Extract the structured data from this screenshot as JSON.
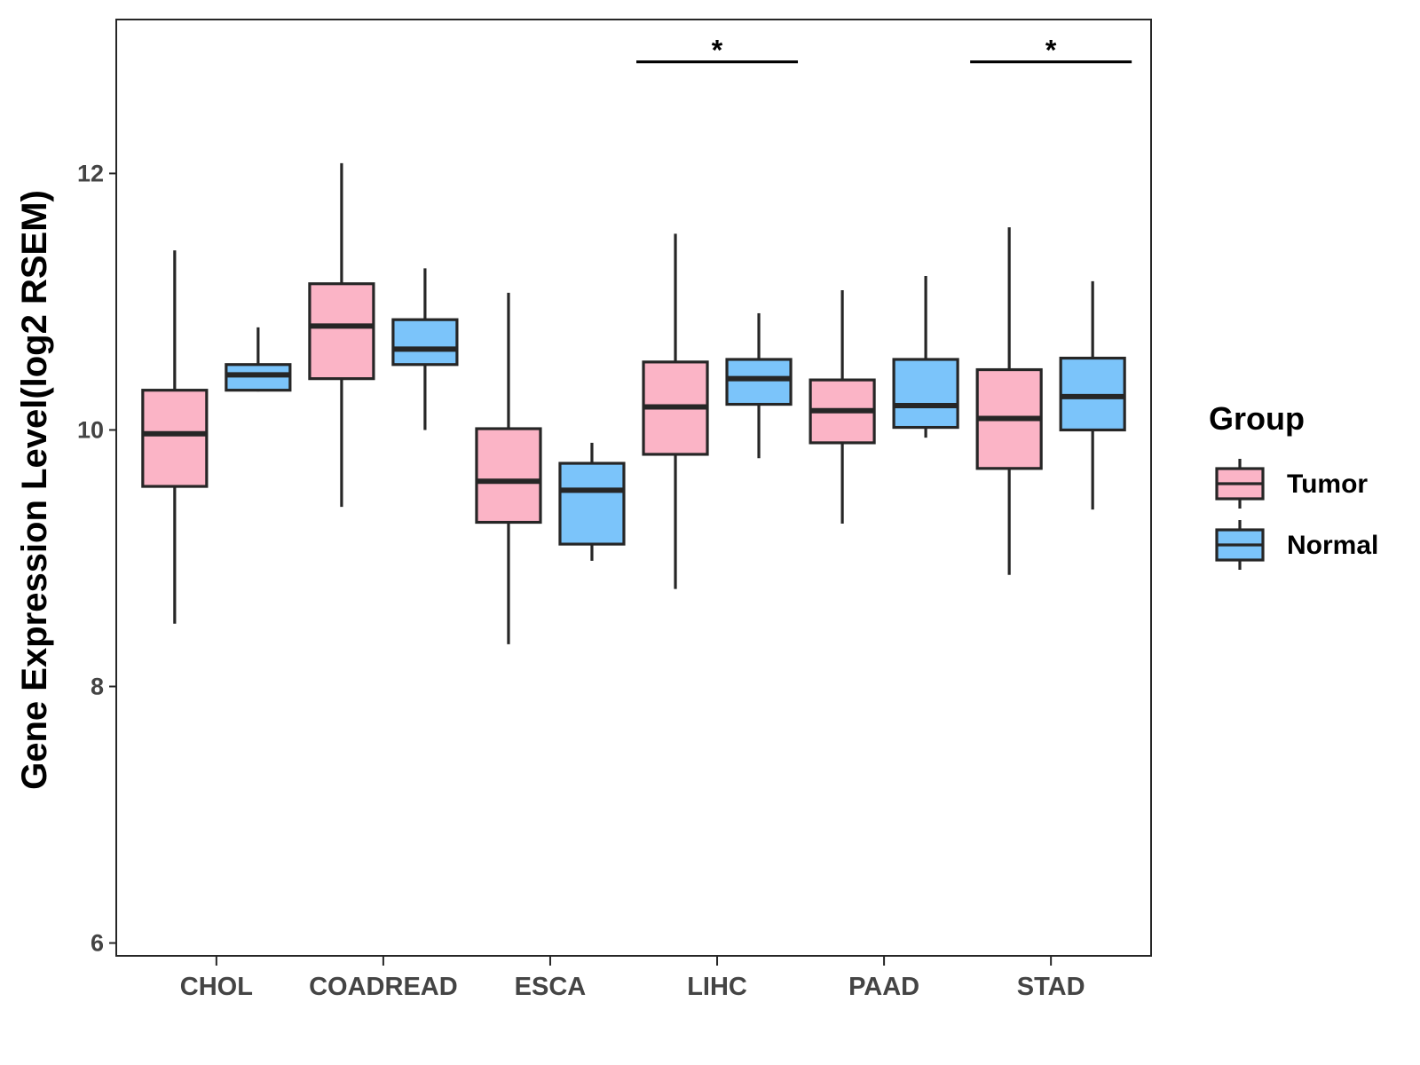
{
  "chart_data": {
    "type": "boxplot",
    "title": "",
    "xlabel": "",
    "ylabel": "Gene Expression Level(log2 RSEM)",
    "ylim": [
      5.9,
      13.2
    ],
    "yticks": [
      6,
      8,
      10,
      12
    ],
    "categories": [
      "CHOL",
      "COADREAD",
      "ESCA",
      "LIHC",
      "PAAD",
      "STAD"
    ],
    "legend": {
      "title": "Group",
      "position": "right",
      "entries": [
        "Tumor",
        "Normal"
      ]
    },
    "series": [
      {
        "name": "Tumor",
        "color": "#FBB4C6",
        "boxes": [
          {
            "min": 8.49,
            "q1": 9.56,
            "median": 9.97,
            "q3": 10.31,
            "max": 11.4
          },
          {
            "min": 9.4,
            "q1": 10.4,
            "median": 10.81,
            "q3": 11.14,
            "max": 12.08
          },
          {
            "min": 8.33,
            "q1": 9.28,
            "median": 9.6,
            "q3": 10.01,
            "max": 11.07
          },
          {
            "min": 8.76,
            "q1": 9.81,
            "median": 10.18,
            "q3": 10.53,
            "max": 11.53
          },
          {
            "min": 9.27,
            "q1": 9.9,
            "median": 10.15,
            "q3": 10.39,
            "max": 11.09
          },
          {
            "min": 8.87,
            "q1": 9.7,
            "median": 10.09,
            "q3": 10.47,
            "max": 11.58
          }
        ]
      },
      {
        "name": "Normal",
        "color": "#7BC4FA",
        "boxes": [
          {
            "min": 10.3,
            "q1": 10.31,
            "median": 10.43,
            "q3": 10.51,
            "max": 10.8
          },
          {
            "min": 10.0,
            "q1": 10.51,
            "median": 10.63,
            "q3": 10.86,
            "max": 11.26
          },
          {
            "min": 8.98,
            "q1": 9.11,
            "median": 9.53,
            "q3": 9.74,
            "max": 9.9
          },
          {
            "min": 9.78,
            "q1": 10.2,
            "median": 10.4,
            "q3": 10.55,
            "max": 10.91
          },
          {
            "min": 9.94,
            "q1": 10.02,
            "median": 10.19,
            "q3": 10.55,
            "max": 11.2
          },
          {
            "min": 9.38,
            "q1": 10.0,
            "median": 10.26,
            "q3": 10.56,
            "max": 11.16
          }
        ]
      }
    ],
    "annotations": [
      {
        "category": "LIHC",
        "text": "*",
        "y": 12.87
      },
      {
        "category": "STAD",
        "text": "*",
        "y": 12.87
      }
    ]
  }
}
